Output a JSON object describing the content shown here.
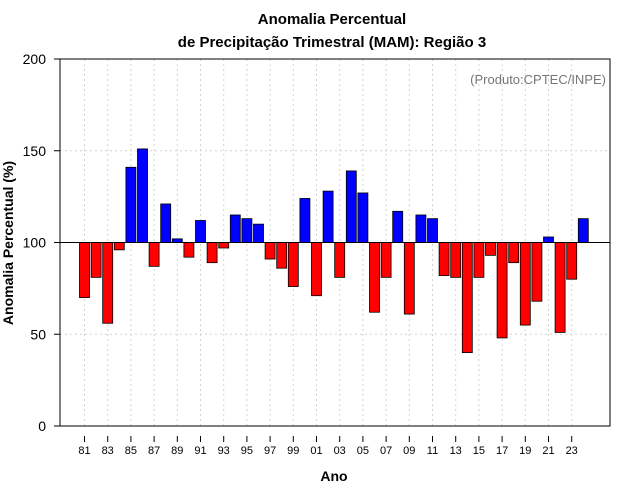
{
  "chart_data": {
    "type": "bar",
    "title_line1": "Anomalia Percentual",
    "title_line2": "de Precipitação Trimestral (MAM): Região 3",
    "credit": "(Produto:CPTEC/INPE)",
    "xlabel": "Ano",
    "ylabel": "Anomalia Percentual (%)",
    "ylim": [
      0,
      200
    ],
    "yticks": [
      "0",
      "50",
      "100",
      "150",
      "200"
    ],
    "baseline": 100,
    "categories": [
      "81",
      "82",
      "83",
      "84",
      "85",
      "86",
      "87",
      "88",
      "89",
      "90",
      "91",
      "92",
      "93",
      "94",
      "95",
      "96",
      "97",
      "98",
      "99",
      "00",
      "01",
      "02",
      "03",
      "04",
      "05",
      "06",
      "07",
      "08",
      "09",
      "10",
      "11",
      "12",
      "13",
      "14",
      "15",
      "16",
      "17",
      "18",
      "19",
      "20",
      "21",
      "22",
      "23",
      "24"
    ],
    "xtick_labels": [
      "81",
      "83",
      "85",
      "87",
      "89",
      "91",
      "93",
      "95",
      "97",
      "99",
      "01",
      "03",
      "05",
      "07",
      "09",
      "11",
      "13",
      "15",
      "17",
      "19",
      "21",
      "23"
    ],
    "values": [
      70,
      81,
      56,
      96,
      141,
      151,
      87,
      121,
      102,
      92,
      112,
      89,
      97,
      115,
      113,
      110,
      91,
      86,
      76,
      124,
      71,
      128,
      81,
      139,
      127,
      62,
      81,
      117,
      61,
      115,
      113,
      82,
      81,
      40,
      81,
      93,
      48,
      89,
      55,
      68,
      103,
      51,
      80,
      113
    ],
    "colors": {
      "above": "#0000ff",
      "below": "#ff0000",
      "grid": "#d3d3d3",
      "axis": "#000000"
    },
    "grid": true
  }
}
